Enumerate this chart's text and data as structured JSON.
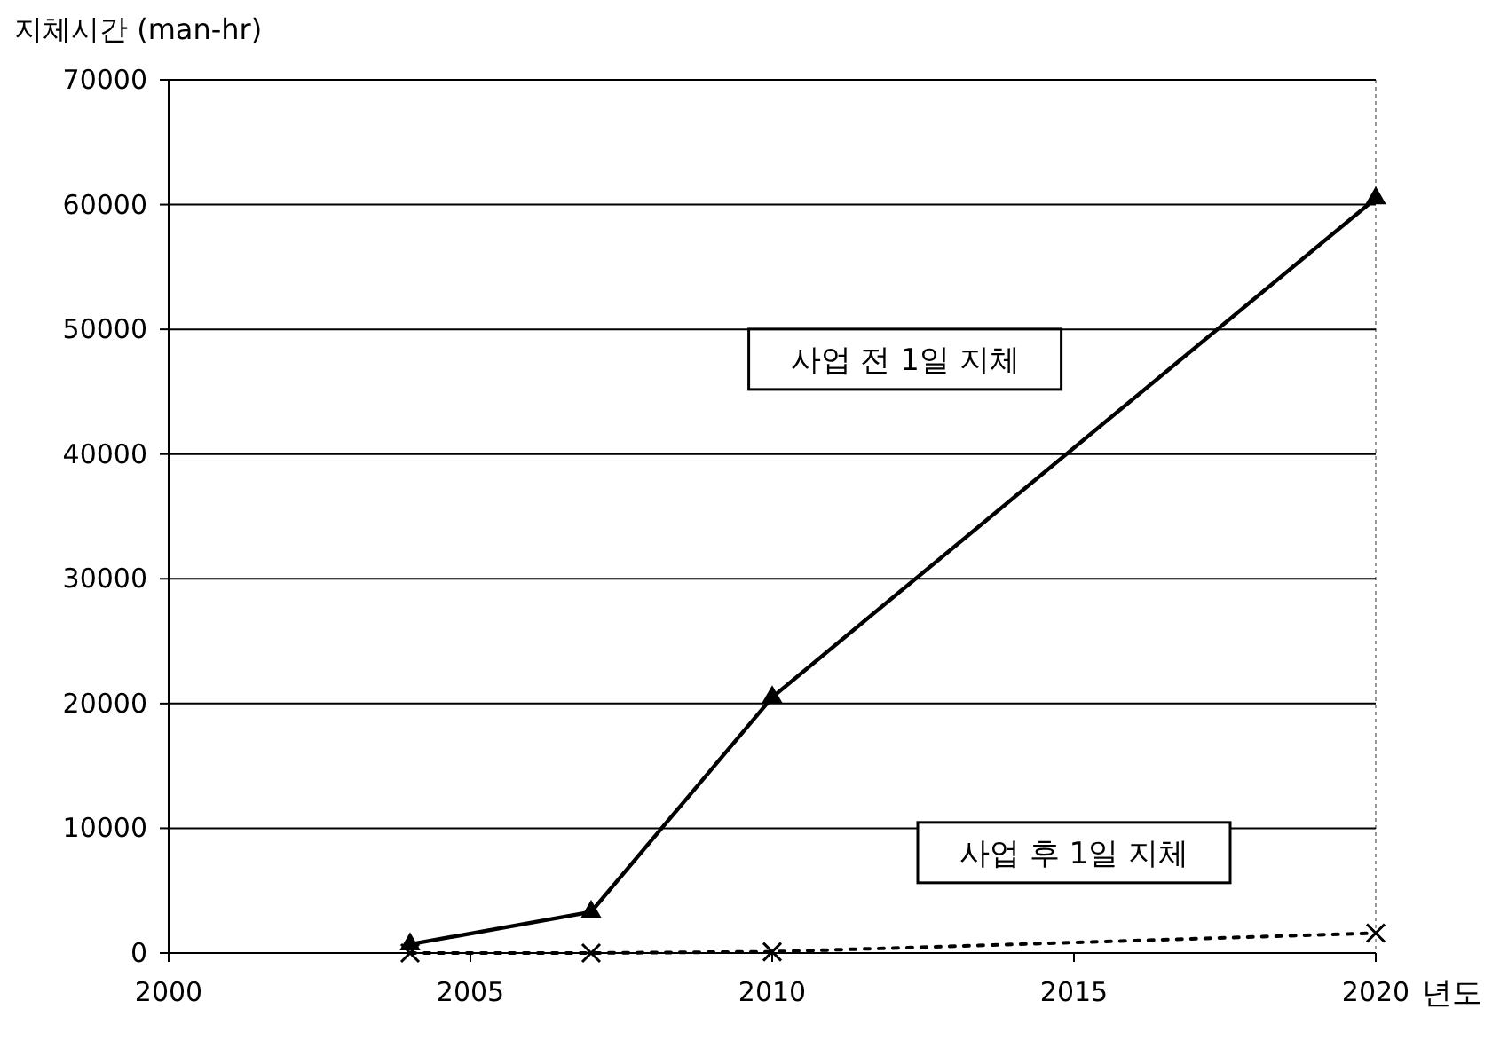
{
  "chart_data": {
    "type": "line",
    "ylabel": "지체시간 (man-hr)",
    "xlabel": "년도",
    "xlim": [
      2000,
      2020
    ],
    "xticks": [
      2000,
      2005,
      2010,
      2015,
      2020
    ],
    "ylim": [
      0,
      70000
    ],
    "yticks": [
      0,
      10000,
      20000,
      30000,
      40000,
      50000,
      60000,
      70000
    ],
    "grid": "y",
    "series": [
      {
        "name": "사업 전 1일 지체",
        "color": "#000000",
        "marker": "triangle",
        "line_style": "solid",
        "x": [
          2004,
          2007,
          2010,
          2020
        ],
        "values": [
          700,
          3300,
          20500,
          60500
        ]
      },
      {
        "name": "사업 후 1일 지체",
        "color": "#000000",
        "marker": "cross",
        "line_style": "dotted",
        "x": [
          2004,
          2007,
          2010,
          2020
        ],
        "values": [
          0,
          0,
          100,
          1600
        ]
      }
    ]
  }
}
